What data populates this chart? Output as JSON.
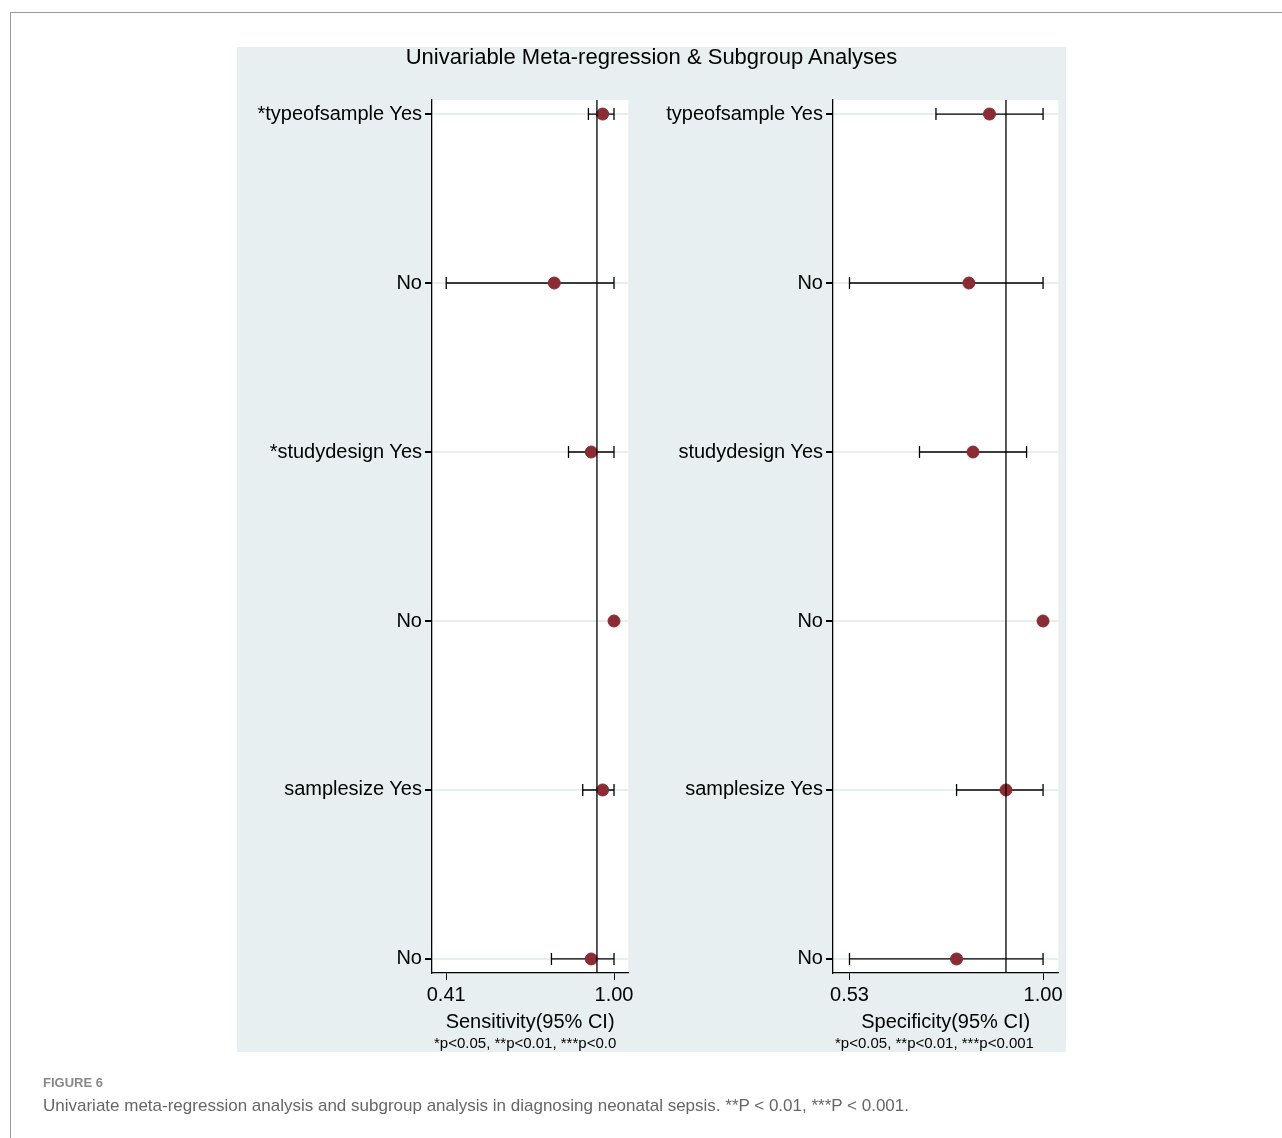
{
  "chart_data": [
    {
      "type": "scatter",
      "orientation": "horizontal",
      "title": "Univariable Meta-regression & Subgroup Analyses",
      "xlabel": "Sensitivity(95% CI)",
      "categories": [
        "*typeofsample Yes",
        "No",
        "*studydesign Yes",
        "No",
        "samplesize Yes",
        "No"
      ],
      "values": [
        0.96,
        0.79,
        0.92,
        1.0,
        0.96,
        0.92
      ],
      "errors": [
        [
          0.91,
          1.0
        ],
        [
          0.41,
          1.0
        ],
        [
          0.84,
          1.0
        ],
        null,
        [
          0.89,
          1.0
        ],
        [
          0.78,
          1.0
        ]
      ],
      "color": "#8b2c35",
      "marker": "circle",
      "grid": "y",
      "legend": false,
      "xlim": [
        0.36,
        1.05
      ],
      "xticks": [
        0.41,
        {
          "value": 1,
          "label": "1.00"
        }
      ],
      "ref_lines": [
        {
          "axis": "x",
          "value": 0.94,
          "color": "#000000"
        }
      ],
      "annotations": [
        "*p<0.05, **p<0.01, ***p<0.0",
        "FIGURE 6",
        "Univariate meta-regression analysis and subgroup analysis in diagnosing neonatal sepsis. **P < 0.01, ***P < 0.001."
      ]
    },
    {
      "type": "scatter",
      "orientation": "horizontal",
      "xlabel": "Specificity(95% CI)",
      "categories": [
        "typeofsample Yes",
        "No",
        "studydesign Yes",
        "No",
        "samplesize Yes",
        "No"
      ],
      "values": [
        0.87,
        0.82,
        0.83,
        1.0,
        0.91,
        0.79
      ],
      "errors": [
        [
          0.74,
          1.0
        ],
        [
          0.53,
          1.0
        ],
        [
          0.7,
          0.96
        ],
        null,
        [
          0.79,
          1.0
        ],
        [
          0.53,
          1.0
        ]
      ],
      "color": "#8b2c35",
      "marker": "circle",
      "grid": "y",
      "legend": false,
      "xlim": [
        0.49,
        1.037
      ],
      "xticks": [
        0.53,
        {
          "value": 1,
          "label": "1.00"
        }
      ],
      "ref_lines": [
        {
          "axis": "x",
          "value": 0.91,
          "color": "#000000"
        }
      ],
      "annotations": [
        "*p<0.05, **p<0.01, ***p<0.001"
      ]
    }
  ]
}
